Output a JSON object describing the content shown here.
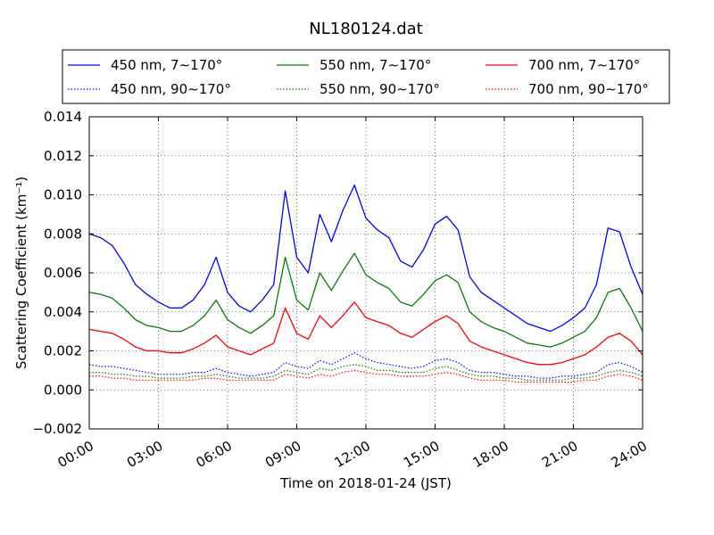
{
  "chart_data": {
    "type": "line",
    "title": "NL180124.dat",
    "xlabel": "Time on 2018-01-24 (JST)",
    "ylabel": "Scattering Coefficient (km⁻¹)",
    "xlim": [
      0,
      24
    ],
    "ylim": [
      -0.002,
      0.014
    ],
    "xticks": [
      0,
      3,
      6,
      9,
      12,
      15,
      18,
      21,
      24
    ],
    "xtick_labels": [
      "00:00",
      "03:00",
      "06:00",
      "09:00",
      "12:00",
      "15:00",
      "18:00",
      "21:00",
      "24:00"
    ],
    "yticks": [
      -0.002,
      0,
      0.002,
      0.004,
      0.006,
      0.008,
      0.01,
      0.012,
      0.014
    ],
    "ytick_labels": [
      "−0.002",
      "0.000",
      "0.002",
      "0.004",
      "0.006",
      "0.008",
      "0.010",
      "0.012",
      "0.014"
    ],
    "grid": true,
    "legend_position": "top, above plot",
    "x": [
      0,
      0.5,
      1,
      1.5,
      2,
      2.5,
      3,
      3.5,
      4,
      4.5,
      5,
      5.5,
      6,
      6.5,
      7,
      7.5,
      8,
      8.5,
      9,
      9.5,
      10,
      10.5,
      11,
      11.5,
      12,
      12.5,
      13,
      13.5,
      14,
      14.5,
      15,
      15.5,
      16,
      16.5,
      17,
      17.5,
      18,
      18.5,
      19,
      19.5,
      20,
      20.5,
      21,
      21.5,
      22,
      22.5,
      23,
      23.5,
      24
    ],
    "series": [
      {
        "name": "450 nm, 7∼170°",
        "color": "#0000ff",
        "style": "solid",
        "values": [
          0.008,
          0.0078,
          0.0074,
          0.0065,
          0.0054,
          0.0049,
          0.0045,
          0.0042,
          0.0042,
          0.0046,
          0.0054,
          0.0068,
          0.005,
          0.0043,
          0.004,
          0.0046,
          0.0054,
          0.0102,
          0.0068,
          0.006,
          0.009,
          0.0076,
          0.0092,
          0.0105,
          0.0088,
          0.0082,
          0.0078,
          0.0066,
          0.0063,
          0.0072,
          0.0085,
          0.0089,
          0.0082,
          0.0058,
          0.005,
          0.0046,
          0.0042,
          0.0038,
          0.0034,
          0.0032,
          0.003,
          0.0033,
          0.0037,
          0.0042,
          0.0054,
          0.0083,
          0.0081,
          0.0063,
          0.0049
        ]
      },
      {
        "name": "450 nm, 90∼170°",
        "color": "#0000ff",
        "style": "dotted",
        "values": [
          0.0013,
          0.0012,
          0.0012,
          0.0011,
          0.001,
          0.0009,
          0.0008,
          0.0008,
          0.0008,
          0.0009,
          0.0009,
          0.0011,
          0.0009,
          0.0008,
          0.0007,
          0.0008,
          0.0009,
          0.0014,
          0.0012,
          0.0011,
          0.0015,
          0.0013,
          0.0016,
          0.0019,
          0.0016,
          0.0014,
          0.0013,
          0.0012,
          0.0011,
          0.0012,
          0.0015,
          0.0016,
          0.0014,
          0.001,
          0.0009,
          0.0009,
          0.0008,
          0.0007,
          0.0007,
          0.0006,
          0.0006,
          0.0007,
          0.0007,
          0.0008,
          0.0009,
          0.0013,
          0.0014,
          0.0012,
          0.0009
        ]
      },
      {
        "name": "550 nm, 7∼170°",
        "color": "#008000",
        "style": "solid",
        "values": [
          0.005,
          0.0049,
          0.0047,
          0.0042,
          0.0036,
          0.0033,
          0.0032,
          0.003,
          0.003,
          0.0033,
          0.0038,
          0.0046,
          0.0036,
          0.0032,
          0.0029,
          0.0033,
          0.0038,
          0.0068,
          0.0046,
          0.0041,
          0.006,
          0.0051,
          0.0061,
          0.007,
          0.0059,
          0.0055,
          0.0052,
          0.0045,
          0.0043,
          0.0049,
          0.0056,
          0.0059,
          0.0055,
          0.004,
          0.0035,
          0.0032,
          0.003,
          0.0027,
          0.0024,
          0.0023,
          0.0022,
          0.0024,
          0.0027,
          0.003,
          0.0037,
          0.005,
          0.0052,
          0.0042,
          0.003
        ]
      },
      {
        "name": "550 nm, 90∼170°",
        "color": "#008000",
        "style": "dotted",
        "values": [
          0.0009,
          0.0009,
          0.0008,
          0.0008,
          0.0007,
          0.0007,
          0.0006,
          0.0006,
          0.0006,
          0.0007,
          0.0007,
          0.0008,
          0.0007,
          0.0006,
          0.0006,
          0.0006,
          0.0007,
          0.001,
          0.0009,
          0.0008,
          0.0011,
          0.001,
          0.0012,
          0.0013,
          0.0012,
          0.001,
          0.001,
          0.0009,
          0.0009,
          0.0009,
          0.0011,
          0.0012,
          0.001,
          0.0008,
          0.0007,
          0.0007,
          0.0006,
          0.0006,
          0.0005,
          0.0005,
          0.0005,
          0.0005,
          0.0006,
          0.0006,
          0.0007,
          0.0009,
          0.001,
          0.0009,
          0.0007
        ]
      },
      {
        "name": "700 nm, 7∼170°",
        "color": "#ff0000",
        "style": "solid",
        "values": [
          0.0031,
          0.003,
          0.0029,
          0.0026,
          0.0022,
          0.002,
          0.002,
          0.0019,
          0.0019,
          0.0021,
          0.0024,
          0.0028,
          0.0022,
          0.002,
          0.0018,
          0.0021,
          0.0024,
          0.0042,
          0.0029,
          0.0026,
          0.0038,
          0.0032,
          0.0038,
          0.0045,
          0.0037,
          0.0035,
          0.0033,
          0.0029,
          0.0027,
          0.0031,
          0.0035,
          0.0038,
          0.0034,
          0.0025,
          0.0022,
          0.002,
          0.0018,
          0.0016,
          0.0014,
          0.0013,
          0.0013,
          0.0014,
          0.0016,
          0.0018,
          0.0022,
          0.0027,
          0.0029,
          0.0025,
          0.0018
        ]
      },
      {
        "name": "700 nm, 90∼170°",
        "color": "#ff0000",
        "style": "dotted",
        "values": [
          0.0007,
          0.0007,
          0.0006,
          0.0006,
          0.0005,
          0.0005,
          0.0005,
          0.0005,
          0.0005,
          0.0005,
          0.0006,
          0.0006,
          0.0005,
          0.0005,
          0.0005,
          0.0005,
          0.0005,
          0.0008,
          0.0007,
          0.0006,
          0.0008,
          0.0007,
          0.0009,
          0.001,
          0.0009,
          0.0008,
          0.0008,
          0.0007,
          0.0007,
          0.0007,
          0.0008,
          0.0009,
          0.0008,
          0.0006,
          0.0005,
          0.0005,
          0.0005,
          0.0004,
          0.0004,
          0.0004,
          0.0004,
          0.0004,
          0.0004,
          0.0005,
          0.0005,
          0.0007,
          0.0008,
          0.0007,
          0.0005
        ]
      }
    ]
  }
}
